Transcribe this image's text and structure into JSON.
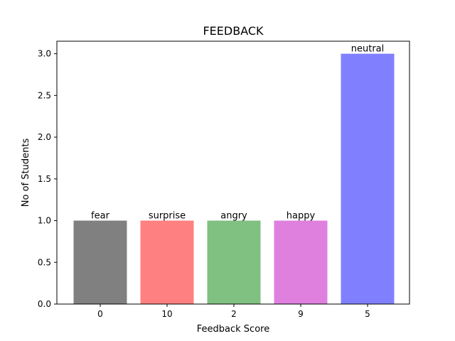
{
  "chart_data": {
    "type": "bar",
    "title": "FEEDBACK",
    "xlabel": "Feedback Score",
    "ylabel": "No of Students",
    "categories": [
      "0",
      "10",
      "2",
      "9",
      "5"
    ],
    "values": [
      1,
      1,
      1,
      1,
      3
    ],
    "bar_labels": [
      "fear",
      "surprise",
      "angry",
      "happy",
      "neutral"
    ],
    "colors": [
      "#808080",
      "#ff8080",
      "#80c080",
      "#df80df",
      "#8080ff"
    ],
    "ylim": [
      0,
      3.15
    ],
    "yticks": [
      "0.0",
      "0.5",
      "1.0",
      "1.5",
      "2.0",
      "2.5",
      "3.0"
    ],
    "ytick_values": [
      0,
      0.5,
      1.0,
      1.5,
      2.0,
      2.5,
      3.0
    ],
    "grid": false,
    "legend": "none"
  }
}
